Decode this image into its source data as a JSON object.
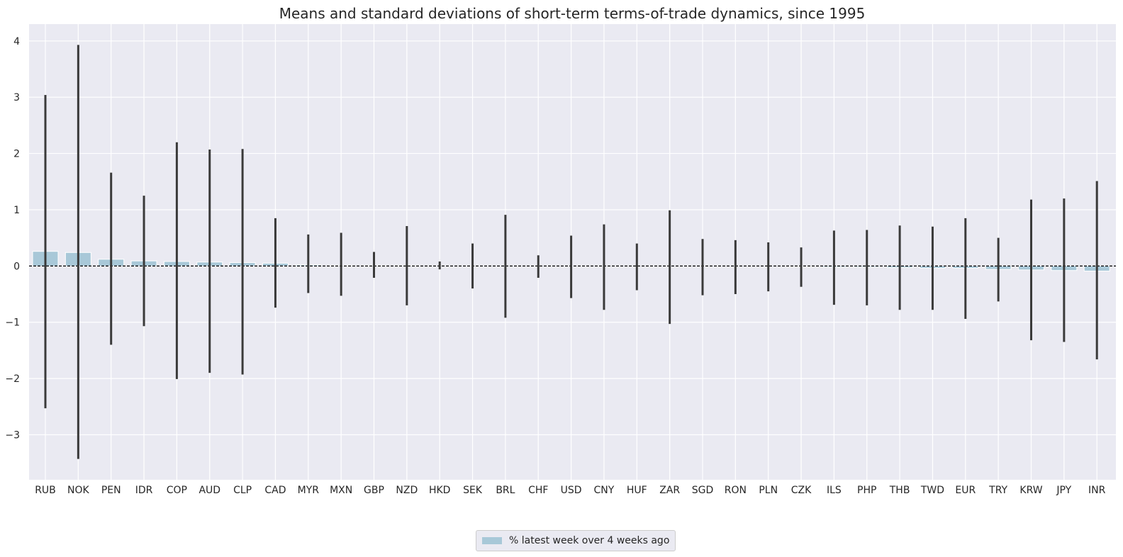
{
  "chart_data": {
    "type": "bar",
    "title": "Means and standard deviations of short-term terms-of-trade dynamics, since 1995",
    "xlabel": "",
    "ylabel": "",
    "ylim": [
      -3.8,
      4.3
    ],
    "yticks": [
      -3,
      -2,
      -1,
      0,
      1,
      2,
      3,
      4
    ],
    "ytick_labels": [
      "−3",
      "−2",
      "−1",
      "0",
      "1",
      "2",
      "3",
      "4"
    ],
    "grid": true,
    "legend_position": "bottom-center",
    "categories": [
      "RUB",
      "NOK",
      "PEN",
      "IDR",
      "COP",
      "AUD",
      "CLP",
      "CAD",
      "MYR",
      "MXN",
      "GBP",
      "NZD",
      "HKD",
      "SEK",
      "BRL",
      "CHF",
      "USD",
      "CNY",
      "HUF",
      "ZAR",
      "SGD",
      "RON",
      "PLN",
      "CZK",
      "ILS",
      "PHP",
      "THB",
      "TWD",
      "EUR",
      "TRY",
      "KRW",
      "JPY",
      "INR"
    ],
    "series": [
      {
        "name": "% latest week over 4 weeks ago",
        "values": [
          0.26,
          0.24,
          0.12,
          0.09,
          0.08,
          0.07,
          0.06,
          0.05,
          0.02,
          0.01,
          0.01,
          0.01,
          0.0,
          0.0,
          0.0,
          0.0,
          0.0,
          0.0,
          0.0,
          0.0,
          0.0,
          0.0,
          0.0,
          -0.01,
          -0.02,
          -0.02,
          -0.03,
          -0.04,
          -0.04,
          -0.06,
          -0.07,
          -0.08,
          -0.09
        ]
      }
    ],
    "error_ranges": [
      [
        -2.53,
        3.04
      ],
      [
        -3.43,
        3.93
      ],
      [
        -1.4,
        1.66
      ],
      [
        -1.07,
        1.25
      ],
      [
        -2.01,
        2.2
      ],
      [
        -1.9,
        2.07
      ],
      [
        -1.93,
        2.08
      ],
      [
        -0.74,
        0.85
      ],
      [
        -0.48,
        0.56
      ],
      [
        -0.53,
        0.59
      ],
      [
        -0.21,
        0.25
      ],
      [
        -0.7,
        0.71
      ],
      [
        -0.06,
        0.08
      ],
      [
        -0.4,
        0.4
      ],
      [
        -0.92,
        0.91
      ],
      [
        -0.21,
        0.19
      ],
      [
        -0.57,
        0.54
      ],
      [
        -0.78,
        0.74
      ],
      [
        -0.43,
        0.4
      ],
      [
        -1.03,
        0.99
      ],
      [
        -0.52,
        0.48
      ],
      [
        -0.5,
        0.46
      ],
      [
        -0.45,
        0.42
      ],
      [
        -0.37,
        0.33
      ],
      [
        -0.69,
        0.63
      ],
      [
        -0.7,
        0.64
      ],
      [
        -0.78,
        0.72
      ],
      [
        -0.78,
        0.7
      ],
      [
        -0.94,
        0.85
      ],
      [
        -0.63,
        0.5
      ],
      [
        -1.32,
        1.18
      ],
      [
        -1.35,
        1.2
      ],
      [
        -1.66,
        1.51
      ]
    ],
    "colors": {
      "bar": "#a8c8d8",
      "bar_edge": "#ffffff",
      "error": "#3a3a3a",
      "background": "#eaeaf2",
      "grid": "#ffffff",
      "zero_line": "#000000"
    },
    "legend_label": "% latest week over 4 weeks ago"
  }
}
